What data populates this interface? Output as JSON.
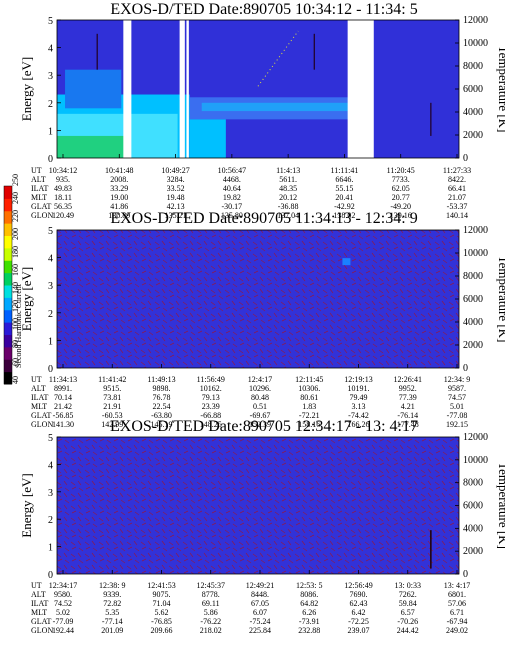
{
  "figure": {
    "colorbar": {
      "label": "Second Harmonic Current",
      "ticks": [
        "40",
        "60",
        "80",
        "100",
        "120",
        "140",
        "160",
        "180",
        "200",
        "220",
        "240",
        "250"
      ],
      "colors": [
        "#000000",
        "#3a003a",
        "#6a006a",
        "#3a00a0",
        "#2a1ad8",
        "#0060ff",
        "#00a8ff",
        "#00e0e0",
        "#00d060",
        "#40e000",
        "#c8ff00",
        "#ffff00",
        "#ffc000",
        "#ff7000",
        "#ff2000",
        "#e00000"
      ]
    },
    "palette": {
      "background": "#3030d8",
      "gap": "#ffffff",
      "blue": "#2828e0",
      "cyan": "#00c0ff",
      "light_cyan": "#40e0ff",
      "green": "#20d080",
      "red_noise": "#c01010",
      "dark": "#000000"
    }
  },
  "chart_data": [
    {
      "type": "heatmap",
      "title": "EXOS-D/TED  Date:890705  10:34:12 - 11:34: 5",
      "ylabel": "Energy [eV]",
      "ylabel_right": "Temperature [K]",
      "ylim": [
        0,
        5
      ],
      "yticks": [
        "0",
        "1",
        "2",
        "3",
        "4",
        "5"
      ],
      "ylim_right": [
        0,
        12000
      ],
      "yticks_right": [
        "0",
        "2000",
        "4000",
        "6000",
        "8000",
        "10000",
        "12000"
      ],
      "row_labels": [
        "UT",
        "ALT",
        "ILAT",
        "MLT",
        "GLAT",
        "GLON"
      ],
      "columns": [
        [
          "10:34:12",
          "935.",
          "49.83",
          "18.11",
          "56.35",
          "120.49"
        ],
        [
          "10:41:48",
          "2008.",
          "33.29",
          "19.00",
          "41.86",
          "130.89"
        ],
        [
          "10:49:27",
          "3284.",
          "33.52",
          "19.48",
          "42.13",
          "135.21"
        ],
        [
          "10:56:47",
          "4468.",
          "40.64",
          "19.82",
          "-30.17",
          "135.80"
        ],
        [
          "11:4:13",
          "5611.",
          "48.35",
          "20.12",
          "-36.88",
          "137.04"
        ],
        [
          "11:11:41",
          "6646.",
          "55.15",
          "20.41",
          "-42.92",
          "138.02"
        ],
        [
          "11:20:45",
          "7733.",
          "62.05",
          "20.77",
          "-49.20",
          "139.16"
        ],
        [
          "11:27:33",
          "8422.",
          "66.41",
          "21.07",
          "-53.37",
          "140.14"
        ]
      ]
    },
    {
      "type": "heatmap",
      "title": "EXOS-D/TED  Date:890705  11:34:13 - 12:34: 9",
      "ylabel": "Energy [eV]",
      "ylabel_right": "Temperature [K]",
      "ylim": [
        0,
        5
      ],
      "yticks": [
        "0",
        "1",
        "2",
        "3",
        "4",
        "5"
      ],
      "ylim_right": [
        0,
        12000
      ],
      "yticks_right": [
        "0",
        "2000",
        "4000",
        "6000",
        "8000",
        "10000",
        "12000"
      ],
      "row_labels": [
        "UT",
        "ALT",
        "ILAT",
        "MLT",
        "GLAT",
        "GLON"
      ],
      "columns": [
        [
          "11:34:13",
          "8991.",
          "70.14",
          "21.42",
          "-56.85",
          "141.30"
        ],
        [
          "11:41:42",
          "9515.",
          "73.81",
          "21.91",
          "-60.53",
          "142.99"
        ],
        [
          "11:49:13",
          "9898.",
          "76.78",
          "22.54",
          "-63.80",
          "145.19"
        ],
        [
          "11:56:49",
          "10162.",
          "79.13",
          "23.39",
          "-66.88",
          "148.25"
        ],
        [
          "12:4:17",
          "10296.",
          "80.48",
          "0.51",
          "-69.67",
          "152.39"
        ],
        [
          "12:11:45",
          "10306.",
          "80.61",
          "1.83",
          "-72.21",
          "158.16"
        ],
        [
          "12:19:13",
          "10191.",
          "79.49",
          "3.13",
          "-74.42",
          "166.26"
        ],
        [
          "12:26:41",
          "9952.",
          "77.39",
          "4.21",
          "-76.14",
          "177.48"
        ],
        [
          "12:34: 9",
          "9587.",
          "74.57",
          "5.01",
          "-77.08",
          "192.15"
        ]
      ]
    },
    {
      "type": "heatmap",
      "title": "EXOS-D/TED  Date:890705  12:34:17 - 13: 4:17",
      "ylabel": "Energy [eV]",
      "ylabel_right": "Temperature [K]",
      "ylim": [
        0,
        5
      ],
      "yticks": [
        "0",
        "1",
        "2",
        "3",
        "4",
        "5"
      ],
      "ylim_right": [
        0,
        12000
      ],
      "yticks_right": [
        "0",
        "2000",
        "4000",
        "6000",
        "8000",
        "10000",
        "12000"
      ],
      "row_labels": [
        "UT",
        "ALT",
        "ILAT",
        "MLT",
        "GLAT",
        "GLON"
      ],
      "columns": [
        [
          "12:34:17",
          "9580.",
          "74.52",
          "5.02",
          "-77.09",
          "192.44"
        ],
        [
          "12:38: 9",
          "9339.",
          "72.82",
          "5.35",
          "-77.14",
          "201.09"
        ],
        [
          "12:41:53",
          "9075.",
          "71.04",
          "5.62",
          "-76.85",
          "209.66"
        ],
        [
          "12:45:37",
          "8778.",
          "69.11",
          "5.86",
          "-76.22",
          "218.02"
        ],
        [
          "12:49:21",
          "8448.",
          "67.05",
          "6.07",
          "-75.24",
          "225.84"
        ],
        [
          "12:53: 5",
          "8086.",
          "64.82",
          "6.26",
          "-73.91",
          "232.88"
        ],
        [
          "12:56:49",
          "7690.",
          "62.43",
          "6.42",
          "-72.25",
          "239.07"
        ],
        [
          "13: 0:33",
          "7262.",
          "59.84",
          "6.57",
          "-70.26",
          "244.42"
        ],
        [
          "13: 4:17",
          "6801.",
          "57.06",
          "6.71",
          "-67.94",
          "249.02"
        ]
      ]
    }
  ]
}
